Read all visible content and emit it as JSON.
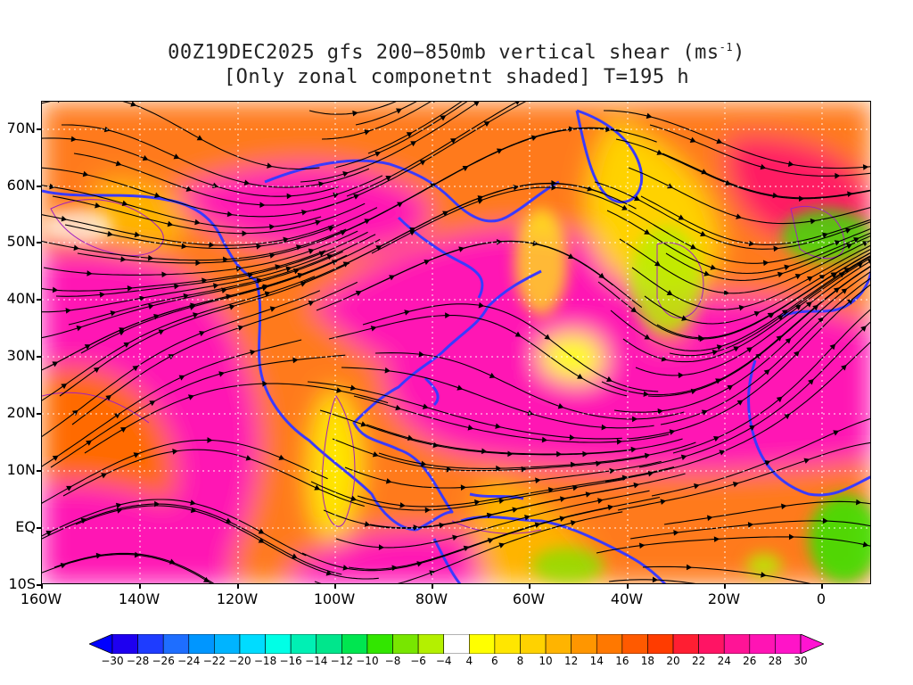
{
  "title": {
    "line1_prefix": "00Z19DEC2025 gfs 200−850mb vertical shear (ms",
    "line1_sup": "-1",
    "line1_suffix": ")",
    "line2": "[Only zonal componetnt shaded] T=195 h"
  },
  "map": {
    "lat_labels": [
      "70N",
      "60N",
      "50N",
      "40N",
      "30N",
      "20N",
      "10N",
      "EQ",
      "10S"
    ],
    "lon_labels": [
      "160W",
      "140W",
      "120W",
      "100W",
      "80W",
      "60W",
      "40W",
      "20W",
      "0"
    ],
    "coastline_color": "#3a3aff",
    "streamline_color": "#000000",
    "contour_color": "#a020c0"
  },
  "colorbar": {
    "labels": [
      "-30",
      "-28",
      "-26",
      "-24",
      "-22",
      "-20",
      "-18",
      "-16",
      "-14",
      "-12",
      "-10",
      "-8",
      "-6",
      "-4",
      "4",
      "6",
      "8",
      "10",
      "12",
      "14",
      "16",
      "18",
      "20",
      "22",
      "24",
      "26",
      "28",
      "30"
    ],
    "colors": [
      "#1e00f0",
      "#1e3cff",
      "#1e6eff",
      "#0096ff",
      "#00b4ff",
      "#00dcff",
      "#00ffe6",
      "#00f0b4",
      "#00e68c",
      "#00e650",
      "#32e600",
      "#78e600",
      "#b4f000",
      "#ffffff",
      "#ffff00",
      "#ffe600",
      "#ffd200",
      "#ffb400",
      "#ff9600",
      "#ff7800",
      "#ff5a00",
      "#ff3c00",
      "#ff1e32",
      "#ff1464",
      "#ff1496",
      "#ff14b4",
      "#ff14c8"
    ],
    "low_arrow_color": "#0000ff",
    "high_arrow_color": "#ff14d2"
  }
}
